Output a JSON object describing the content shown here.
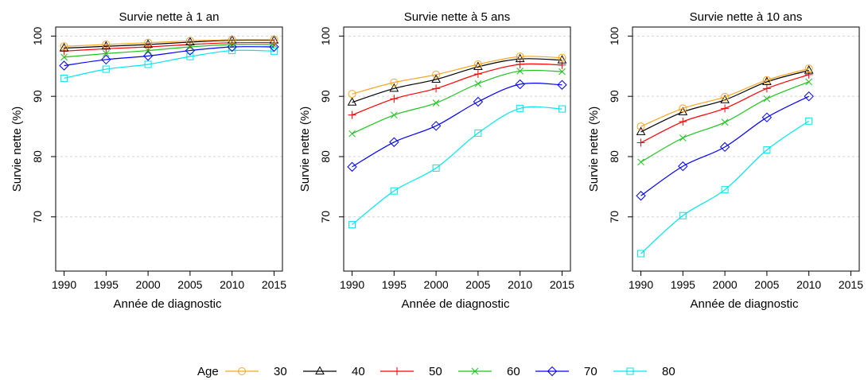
{
  "chart_data": {
    "type": "line",
    "legend": {
      "title": "Age",
      "placement": "bottom"
    },
    "series_styles": [
      {
        "name": "30",
        "color": "#F5A623",
        "marker": "circle"
      },
      {
        "name": "40",
        "color": "#000000",
        "marker": "triangle"
      },
      {
        "name": "50",
        "color": "#FF0000",
        "marker": "plus"
      },
      {
        "name": "60",
        "color": "#1DC21D",
        "marker": "cross"
      },
      {
        "name": "70",
        "color": "#0000FF",
        "marker": "diamond"
      },
      {
        "name": "80",
        "color": "#00E5EE",
        "marker": "square"
      }
    ],
    "panels": [
      {
        "title": "Survie nette à 1 an",
        "xlabel": "Année de diagnostic",
        "ylabel": "Survie nette (%)",
        "xlim": [
          1989,
          2016
        ],
        "ylim": [
          61,
          101.5
        ],
        "xticks": [
          1990,
          1995,
          2000,
          2005,
          2010,
          2015
        ],
        "yticks": [
          70,
          80,
          90,
          100
        ],
        "grid": "horizontal dashed",
        "x": [
          1990,
          1995,
          2000,
          2005,
          2010,
          2015
        ],
        "series": [
          {
            "name": "30",
            "values": [
              98.3,
              98.6,
              98.9,
              99.2,
              99.4,
              99.4
            ]
          },
          {
            "name": "40",
            "values": [
              98.0,
              98.3,
              98.6,
              99.0,
              99.3,
              99.3
            ]
          },
          {
            "name": "50",
            "values": [
              97.5,
              97.9,
              98.2,
              98.6,
              98.9,
              98.9
            ]
          },
          {
            "name": "60",
            "values": [
              96.5,
              97.1,
              97.6,
              98.2,
              98.6,
              98.6
            ]
          },
          {
            "name": "70",
            "values": [
              95.1,
              96.1,
              96.7,
              97.6,
              98.2,
              98.2
            ]
          },
          {
            "name": "80",
            "values": [
              93.0,
              94.5,
              95.3,
              96.6,
              97.6,
              97.5
            ]
          }
        ]
      },
      {
        "title": "Survie nette à 5 ans",
        "xlabel": "Année de diagnostic",
        "ylabel": "Survie nette (%)",
        "xlim": [
          1989,
          2016
        ],
        "ylim": [
          61,
          101.5
        ],
        "xticks": [
          1990,
          1995,
          2000,
          2005,
          2010,
          2015
        ],
        "yticks": [
          70,
          80,
          90,
          100
        ],
        "grid": "horizontal dashed",
        "x": [
          1990,
          1995,
          2000,
          2005,
          2010,
          2015
        ],
        "series": [
          {
            "name": "30",
            "values": [
              90.4,
              92.3,
              93.6,
              95.3,
              96.6,
              96.4
            ]
          },
          {
            "name": "40",
            "values": [
              89.0,
              91.3,
              92.8,
              94.9,
              96.2,
              96.0
            ]
          },
          {
            "name": "50",
            "values": [
              86.9,
              89.6,
              91.3,
              93.7,
              95.3,
              95.2
            ]
          },
          {
            "name": "60",
            "values": [
              83.8,
              86.9,
              88.9,
              92.1,
              94.2,
              94.1
            ]
          },
          {
            "name": "70",
            "values": [
              78.3,
              82.4,
              85.1,
              89.1,
              92.0,
              91.9
            ]
          },
          {
            "name": "80",
            "values": [
              68.7,
              74.3,
              78.1,
              83.9,
              88.0,
              87.9
            ]
          }
        ]
      },
      {
        "title": "Survie nette à 10 ans",
        "xlabel": "Année de diagnostic",
        "ylabel": "Survie nette (%)",
        "xlim": [
          1989,
          2016
        ],
        "ylim": [
          61,
          101.5
        ],
        "xticks": [
          1990,
          1995,
          2000,
          2005,
          2010,
          2015
        ],
        "yticks": [
          70,
          80,
          90,
          100
        ],
        "grid": "horizontal dashed",
        "x": [
          1990,
          1995,
          2000,
          2005,
          2010
        ],
        "series": [
          {
            "name": "30",
            "values": [
              85.0,
              88.0,
              89.9,
              92.7,
              94.6
            ]
          },
          {
            "name": "40",
            "values": [
              84.1,
              87.4,
              89.4,
              92.4,
              94.3
            ]
          },
          {
            "name": "50",
            "values": [
              82.3,
              85.8,
              88.0,
              91.3,
              93.6
            ]
          },
          {
            "name": "60",
            "values": [
              79.1,
              83.1,
              85.7,
              89.6,
              92.4
            ]
          },
          {
            "name": "70",
            "values": [
              73.5,
              78.4,
              81.6,
              86.5,
              90.0
            ]
          },
          {
            "name": "80",
            "values": [
              63.9,
              70.2,
              74.5,
              81.1,
              85.9
            ]
          }
        ]
      }
    ]
  }
}
